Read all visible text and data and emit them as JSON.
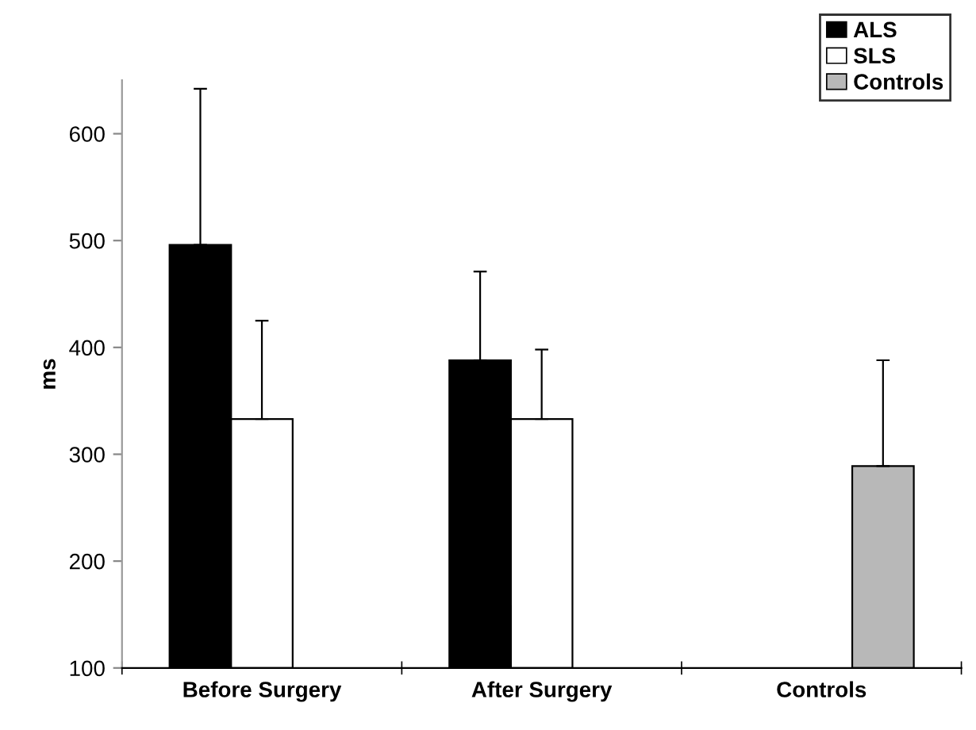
{
  "chart_data": {
    "type": "bar",
    "ylabel": "ms",
    "categories": [
      "Before Surgery",
      "After Surgery",
      "Controls"
    ],
    "series": [
      {
        "name": "ALS",
        "color": "#000000",
        "values": [
          496,
          388,
          null
        ],
        "errors": [
          [
            496,
            642
          ],
          [
            388,
            471
          ],
          null
        ]
      },
      {
        "name": "SLS",
        "color": "#ffffff",
        "values": [
          333,
          333,
          null
        ],
        "errors": [
          [
            333,
            425
          ],
          [
            333,
            398
          ],
          null
        ]
      },
      {
        "name": "Controls",
        "color": "#b8b8b8",
        "values": [
          null,
          null,
          289
        ],
        "errors": [
          null,
          null,
          [
            289,
            388
          ]
        ]
      }
    ],
    "ylim": [
      100,
      650
    ],
    "yticks": [
      100,
      200,
      300,
      400,
      500,
      600
    ],
    "grid": false,
    "legend": "top right"
  }
}
